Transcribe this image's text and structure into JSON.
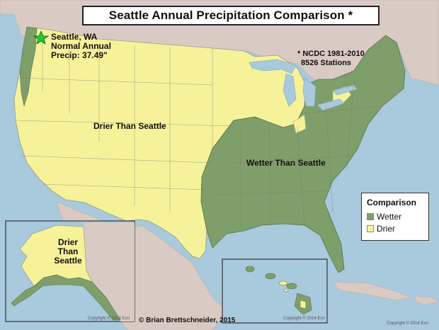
{
  "title": "Seattle Annual Precipitation Comparison *",
  "labels": {
    "seattle_line1": "Seattle, WA",
    "seattle_line2": "Normal Annual",
    "seattle_line3": "Precip: 37.49\"",
    "ncdc_line1": "* NCDC 1981-2010",
    "ncdc_line2": "8526 Stations",
    "drier_main": "Drier Than Seattle",
    "wetter_main": "Wetter Than Seattle",
    "alaska_line1": "Drier",
    "alaska_line2": "Than",
    "alaska_line3": "Seattle"
  },
  "legend": {
    "title": "Comparison",
    "items": [
      {
        "label": "Wetter",
        "color": "#7f9f6a"
      },
      {
        "label": "Drier",
        "color": "#f6f29a"
      }
    ]
  },
  "credits": {
    "author": "© Brian Brettschneider, 2015",
    "esri_main": "Copyright © 2014 Esri",
    "esri_alaska": "Copyright © 2014 Esri",
    "esri_hawaii": "Copyright © 2014 Esri"
  },
  "colors": {
    "ocean": "#a9c9dc",
    "land_other": "#d9cbc3",
    "drier": "#f6f29a",
    "wetter": "#7f9f6a",
    "seattle_star": "#22cc33"
  }
}
